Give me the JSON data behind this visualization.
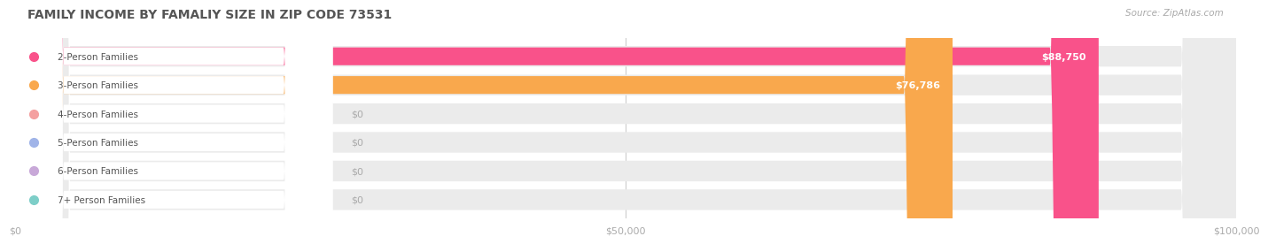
{
  "title": "FAMILY INCOME BY FAMALIY SIZE IN ZIP CODE 73531",
  "source": "Source: ZipAtlas.com",
  "categories": [
    "2-Person Families",
    "3-Person Families",
    "4-Person Families",
    "5-Person Families",
    "6-Person Families",
    "7+ Person Families"
  ],
  "values": [
    88750,
    76786,
    0,
    0,
    0,
    0
  ],
  "bar_colors": [
    "#F9528A",
    "#F9A84D",
    "#F4A0A0",
    "#A0B4E8",
    "#C8A8D8",
    "#7DCEC8"
  ],
  "value_labels": [
    "$88,750",
    "$76,786",
    "$0",
    "$0",
    "$0",
    "$0"
  ],
  "xmax": 100000,
  "xticks": [
    0,
    50000,
    100000
  ],
  "xticklabels": [
    "$0",
    "$50,000",
    "$100,000"
  ],
  "background_color": "#ffffff",
  "bar_bg_color": "#f0f0f0",
  "title_color": "#555555",
  "label_color": "#555555",
  "value_color_inside": "#ffffff",
  "value_color_outside": "#888888"
}
